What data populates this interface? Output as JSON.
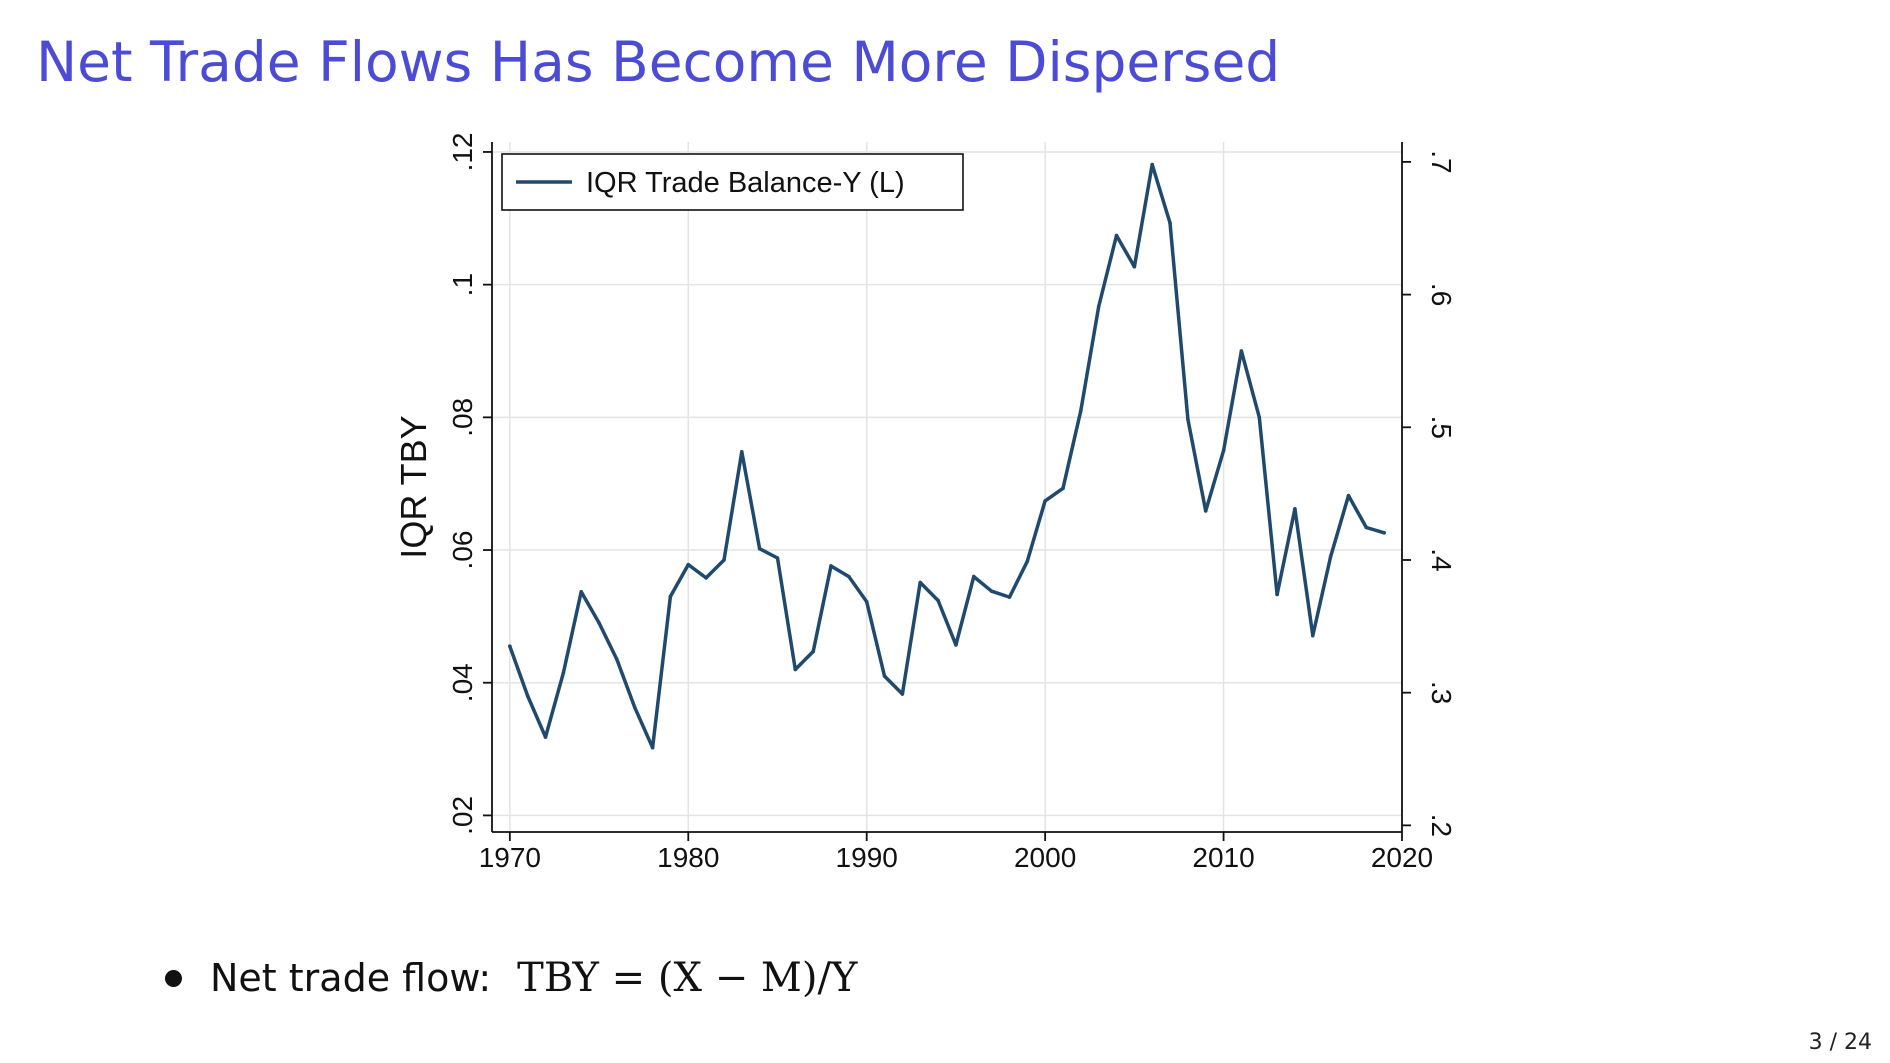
{
  "slide": {
    "title": "Net Trade Flows Has Become More Dispersed",
    "title_color": "#4b4bd6",
    "bullet_label": "Net trade flow:",
    "bullet_formula": "TBY = (X − M)/Y",
    "page_number": "3 / 24"
  },
  "chart_data": {
    "type": "line",
    "title": "",
    "xlabel": "",
    "ylabel": "IQR TBY",
    "y2label": "",
    "xlim": [
      1969,
      2020
    ],
    "ylim": [
      0.0175,
      0.1215
    ],
    "y2lim": [
      0.195,
      0.715
    ],
    "x_ticks": [
      1970,
      1980,
      1990,
      2000,
      2010,
      2020
    ],
    "x_tick_labels": [
      "1970",
      "1980",
      "1990",
      "2000",
      "2010",
      "2020"
    ],
    "y_ticks": [
      0.02,
      0.04,
      0.06,
      0.08,
      0.1,
      0.12
    ],
    "y_tick_labels": [
      ".02",
      ".04",
      ".06",
      ".08",
      ".1",
      ".12"
    ],
    "y2_ticks": [
      0.2,
      0.3,
      0.4,
      0.5,
      0.6,
      0.7
    ],
    "y2_tick_labels": [
      ".2",
      ".3",
      ".4",
      ".5",
      ".6",
      ".7"
    ],
    "grid": true,
    "legend": {
      "position": "top-left",
      "entries": [
        "IQR Trade Balance-Y (L)"
      ]
    },
    "series": [
      {
        "name": "IQR Trade Balance-Y (L)",
        "axis": "left",
        "color": "#1f4a6e",
        "x": [
          1970,
          1971,
          1972,
          1973,
          1974,
          1975,
          1976,
          1977,
          1978,
          1979,
          1980,
          1981,
          1982,
          1983,
          1984,
          1985,
          1986,
          1987,
          1988,
          1989,
          1990,
          1991,
          1992,
          1993,
          1994,
          1995,
          1996,
          1997,
          1998,
          1999,
          2000,
          2001,
          2002,
          2003,
          2004,
          2005,
          2006,
          2007,
          2008,
          2009,
          2010,
          2011,
          2012,
          2013,
          2014,
          2015,
          2016,
          2017,
          2018,
          2019
        ],
        "values": [
          0.0455,
          0.038,
          0.0318,
          0.0415,
          0.0537,
          0.049,
          0.0435,
          0.0363,
          0.0302,
          0.053,
          0.0578,
          0.0558,
          0.0585,
          0.0748,
          0.0602,
          0.0588,
          0.042,
          0.0447,
          0.0576,
          0.056,
          0.0522,
          0.041,
          0.0383,
          0.0551,
          0.0524,
          0.0457,
          0.056,
          0.0538,
          0.0529,
          0.0583,
          0.0674,
          0.0693,
          0.081,
          0.0967,
          0.1074,
          0.1027,
          0.1181,
          0.1093,
          0.0797,
          0.0659,
          0.075,
          0.09,
          0.08,
          0.0533,
          0.0662,
          0.0471,
          0.059,
          0.0682,
          0.0634,
          0.0626
        ]
      }
    ]
  }
}
